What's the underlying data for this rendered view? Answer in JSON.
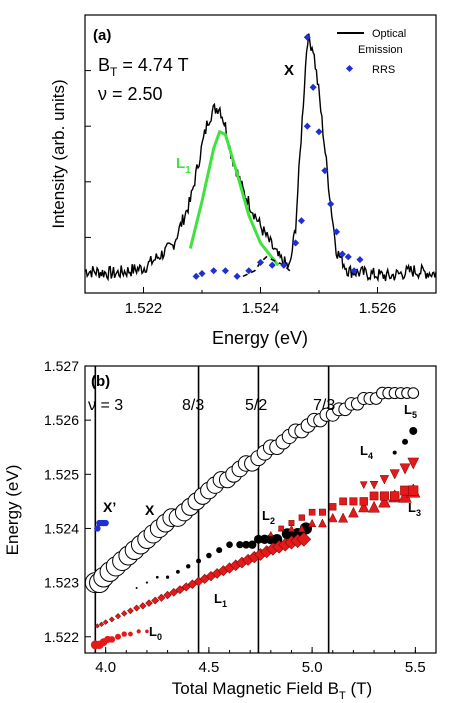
{
  "chart_data": [
    {
      "panel": "(a)",
      "type": "line",
      "xlabel": "Energy (eV)",
      "ylabel": "Intensity (arb. units)",
      "xlim": [
        1.521,
        1.527
      ],
      "ylim": [
        0,
        1
      ],
      "xticks": [
        "1.522",
        "1.524",
        "1.526"
      ],
      "annotations": {
        "field": "B",
        "field_sub": "T",
        "field_value": " = 4.74 T",
        "filling": "ν = 2.50",
        "peak_x": "X",
        "peak_l1": "L",
        "peak_l1_sub": "1"
      },
      "legend": {
        "position": "top-right",
        "line_label_1": "Optical",
        "line_label_2": "Emission",
        "marker_label": "RRS"
      },
      "colors": {
        "emission": "#000000",
        "rrs": "#1f2fd6",
        "fit": "#3ee33e",
        "background": "#000000"
      },
      "series": [
        {
          "name": "Optical Emission",
          "x": [
            1.521,
            1.5215,
            1.522,
            1.5225,
            1.5228,
            1.523,
            1.5231,
            1.5232,
            1.5233,
            1.5234,
            1.5235,
            1.5237,
            1.524,
            1.5243,
            1.5245,
            1.5246,
            1.5247,
            1.5248,
            1.5249,
            1.525,
            1.5251,
            1.5252,
            1.5253,
            1.5255,
            1.5258,
            1.5262,
            1.5266,
            1.527
          ],
          "y": [
            0.08,
            0.07,
            0.09,
            0.17,
            0.33,
            0.53,
            0.62,
            0.66,
            0.67,
            0.6,
            0.5,
            0.37,
            0.24,
            0.13,
            0.09,
            0.24,
            0.58,
            0.92,
            0.88,
            0.72,
            0.52,
            0.32,
            0.15,
            0.08,
            0.07,
            0.06,
            0.08,
            0.07
          ]
        },
        {
          "name": "RRS",
          "x": [
            1.5229,
            1.523,
            1.5232,
            1.5234,
            1.5236,
            1.5238,
            1.524,
            1.5242,
            1.5244,
            1.5246,
            1.5247,
            1.5248,
            1.5248,
            1.5249,
            1.525,
            1.5251,
            1.5252,
            1.5253,
            1.5254,
            1.5255,
            1.5256,
            1.5257
          ],
          "y": [
            0.06,
            0.07,
            0.08,
            0.08,
            0.06,
            0.08,
            0.11,
            0.1,
            0.1,
            0.18,
            0.26,
            0.92,
            0.6,
            0.74,
            0.58,
            0.44,
            0.32,
            0.22,
            0.14,
            0.13,
            0.08,
            0.12
          ]
        },
        {
          "name": "",
          "x": [
            1.5228,
            1.523,
            1.5232,
            1.5233,
            1.5234,
            1.5236,
            1.5238,
            1.524,
            1.5243
          ],
          "y": [
            0.16,
            0.33,
            0.52,
            0.58,
            0.57,
            0.43,
            0.28,
            0.18,
            0.1
          ]
        },
        {
          "name": "",
          "x": [
            1.5237,
            1.5239,
            1.524,
            1.5241,
            1.5242,
            1.5244,
            1.5245
          ],
          "y": [
            0.06,
            0.08,
            0.11,
            0.13,
            0.12,
            0.1,
            0.08
          ]
        }
      ]
    },
    {
      "panel": "(b)",
      "type": "scatter",
      "xlabel": "Total Magnetic Field B",
      "xlabel_sub": "T",
      "xlabel_unit": " (T)",
      "ylabel": "Energy (eV)",
      "xlim": [
        3.9,
        5.6
      ],
      "ylim": [
        1.5217,
        1.527
      ],
      "xticks": [
        "4.0",
        "4.5",
        "5.0",
        "5.5"
      ],
      "yticks": [
        "1.522",
        "1.523",
        "1.524",
        "1.525",
        "1.526",
        "1.527"
      ],
      "filling_labels": [
        "ν = 3",
        "8/3",
        "5/2",
        "7/3"
      ],
      "filling_fields": [
        3.95,
        4.45,
        4.74,
        5.08
      ],
      "labels": {
        "x": "X",
        "xprime": "X’",
        "l0": "L",
        "l1": "L",
        "l2": "L",
        "l3": "L",
        "l4": "L",
        "l5": "L",
        "l0_sub": "0",
        "l1_sub": "1",
        "l2_sub": "2",
        "l3_sub": "3",
        "l4_sub": "4",
        "l5_sub": "5"
      },
      "colors": {
        "x_marker": "#ffffff",
        "red": "#e41a1a",
        "black": "#000000",
        "blue": "#1f2fd6"
      },
      "series": [
        {
          "name": "X",
          "x": [
            3.95,
            3.97,
            3.99,
            4.02,
            4.05,
            4.08,
            4.11,
            4.14,
            4.17,
            4.2,
            4.23,
            4.26,
            4.29,
            4.32,
            4.35,
            4.38,
            4.41,
            4.44,
            4.47,
            4.5,
            4.53,
            4.56,
            4.59,
            4.62,
            4.65,
            4.68,
            4.71,
            4.74,
            4.77,
            4.8,
            4.83,
            4.86,
            4.89,
            4.92,
            4.95,
            4.98,
            5.01,
            5.04,
            5.07,
            5.1,
            5.13,
            5.16,
            5.19,
            5.22,
            5.25,
            5.28,
            5.31,
            5.34,
            5.37,
            5.4,
            5.43,
            5.46,
            5.49
          ],
          "y": [
            1.523,
            1.523,
            1.5231,
            1.5232,
            1.5233,
            1.5234,
            1.5235,
            1.5236,
            1.5237,
            1.5238,
            1.5239,
            1.524,
            1.5241,
            1.5242,
            1.5242,
            1.5243,
            1.5244,
            1.5245,
            1.5246,
            1.5247,
            1.5248,
            1.5249,
            1.5249,
            1.525,
            1.5251,
            1.5252,
            1.5252,
            1.5253,
            1.5254,
            1.5255,
            1.5255,
            1.5256,
            1.5257,
            1.5258,
            1.5258,
            1.5259,
            1.526,
            1.526,
            1.5261,
            1.5261,
            1.5262,
            1.5262,
            1.5263,
            1.5263,
            1.5264,
            1.5264,
            1.5264,
            1.5265,
            1.5265,
            1.5265,
            1.5265,
            1.5265,
            1.5265
          ]
        },
        {
          "name": "X’",
          "x": [
            3.96,
            3.97,
            3.98,
            3.99,
            4.0
          ],
          "y": [
            1.524,
            1.5241,
            1.5241,
            1.5241,
            1.5241
          ]
        },
        {
          "name": "L0",
          "x": [
            3.95,
            3.97,
            3.99,
            4.01,
            4.03,
            4.06,
            4.09,
            4.12,
            4.16,
            4.2
          ],
          "y": [
            1.52185,
            1.52185,
            1.5219,
            1.52195,
            1.52195,
            1.522,
            1.52205,
            1.52205,
            1.5221,
            1.5221
          ]
        },
        {
          "name": "L1",
          "x": [
            3.96,
            3.98,
            4.0,
            4.03,
            4.06,
            4.09,
            4.12,
            4.15,
            4.18,
            4.21,
            4.24,
            4.27,
            4.3,
            4.33,
            4.36,
            4.39,
            4.42,
            4.45,
            4.48,
            4.51,
            4.54,
            4.57,
            4.6,
            4.63,
            4.66,
            4.69,
            4.72,
            4.75,
            4.78,
            4.81,
            4.84,
            4.87,
            4.9,
            4.93,
            4.96
          ],
          "y": [
            1.5222,
            1.52223,
            1.52227,
            1.52232,
            1.52238,
            1.52243,
            1.52248,
            1.52253,
            1.52257,
            1.52262,
            1.52267,
            1.52272,
            1.52277,
            1.52282,
            1.52287,
            1.52292,
            1.52297,
            1.52302,
            1.52307,
            1.52312,
            1.52317,
            1.52322,
            1.52327,
            1.52332,
            1.52337,
            1.52342,
            1.52347,
            1.52352,
            1.52357,
            1.52362,
            1.52366,
            1.5237,
            1.52374,
            1.52377,
            1.5238
          ]
        },
        {
          "name": "L2",
          "x": [
            4.15,
            4.2,
            4.25,
            4.3,
            4.35,
            4.4,
            4.45,
            4.5,
            4.55,
            4.6,
            4.65,
            4.68,
            4.71,
            4.74,
            4.77,
            4.8,
            4.83,
            4.88,
            4.93,
            4.97
          ],
          "y": [
            1.5229,
            1.523,
            1.5231,
            1.5231,
            1.5232,
            1.5233,
            1.5234,
            1.5235,
            1.5236,
            1.5237,
            1.5237,
            1.5237,
            1.5237,
            1.5238,
            1.5238,
            1.5238,
            1.5238,
            1.5239,
            1.5239,
            1.524
          ]
        },
        {
          "name": "L3",
          "x": [
            4.85,
            4.9,
            4.95,
            5.0,
            5.05,
            5.1,
            5.15,
            5.2,
            5.25,
            5.3,
            5.35,
            5.4,
            5.45,
            5.49
          ],
          "y": [
            1.524,
            1.5241,
            1.5242,
            1.5243,
            1.5243,
            1.5244,
            1.5245,
            1.5245,
            1.5245,
            1.5246,
            1.5246,
            1.5246,
            1.5247,
            1.5247
          ]
        },
        {
          "name": "L4",
          "x": [
            4.8,
            4.85,
            4.9,
            4.95,
            5.0,
            5.05,
            5.1,
            5.15,
            5.2,
            5.25,
            5.3,
            5.35,
            5.4,
            5.45,
            5.49
          ],
          "y": [
            1.5239,
            1.524,
            1.524,
            1.524,
            1.5241,
            1.5241,
            1.5242,
            1.5242,
            1.5243,
            1.5244,
            1.5244,
            1.5245,
            1.5246,
            1.5246,
            1.5247
          ]
        },
        {
          "name": "L4 upper",
          "x": [
            5.25,
            5.3,
            5.35,
            5.4,
            5.45,
            5.49
          ],
          "y": [
            1.5248,
            1.5248,
            1.5249,
            1.525,
            1.5251,
            1.5252
          ]
        },
        {
          "name": "L5",
          "x": [
            5.4,
            5.45,
            5.49
          ],
          "y": [
            1.5254,
            1.5256,
            1.5258
          ]
        }
      ]
    }
  ]
}
